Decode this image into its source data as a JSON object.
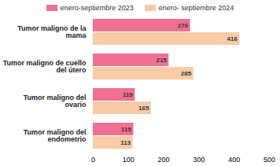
{
  "chart_data": {
    "type": "bar",
    "orientation": "horizontal",
    "categories": [
      "Tumor maligno de la mama",
      "Tumor maligno de cuello del útero",
      "Tumor maligno del ovario",
      "Tumor maligno del endometrio"
    ],
    "series": [
      {
        "name": "enero-septiembre 2023",
        "color": "#f2708f",
        "values": [
          276,
          215,
          119,
          115
        ]
      },
      {
        "name": "enero- septiembre 2024",
        "color": "#f9caa6",
        "values": [
          416,
          285,
          165,
          113
        ]
      }
    ],
    "xlim": [
      0,
      500
    ],
    "xticks": [
      0,
      100,
      200,
      300,
      400,
      500
    ],
    "data_labels": true,
    "legend": "top",
    "grid": false
  }
}
